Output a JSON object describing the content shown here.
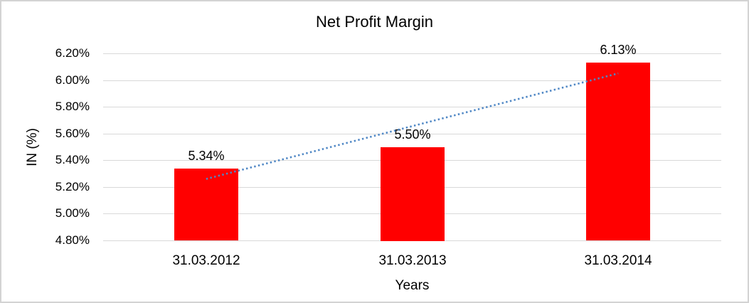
{
  "chart_data": {
    "type": "bar",
    "title": "Net Profit Margin",
    "xlabel": "Years",
    "ylabel": "IN (%)",
    "categories": [
      "31.03.2012",
      "31.03.2013",
      "31.03.2014"
    ],
    "values": [
      5.34,
      5.5,
      6.13
    ],
    "data_labels": [
      "5.34%",
      "5.50%",
      "6.13%"
    ],
    "ylim": [
      4.8,
      6.2
    ],
    "ytick_step": 0.2,
    "ytick_values": [
      6.2,
      6.0,
      5.8,
      5.6,
      5.4,
      5.2,
      5.0,
      4.8
    ],
    "ytick_labels": [
      "6.20%",
      "6.00%",
      "5.80%",
      "5.60%",
      "5.40%",
      "5.20%",
      "5.00%",
      "4.80%"
    ],
    "grid": true,
    "legend": "none",
    "bar_color": "#ff0000",
    "gridline_color": "#d9d9d9",
    "text_color": "#000000",
    "trendline": {
      "style": "dotted",
      "color": "#4f87c5",
      "start_value": 5.26,
      "end_value": 6.05
    }
  }
}
